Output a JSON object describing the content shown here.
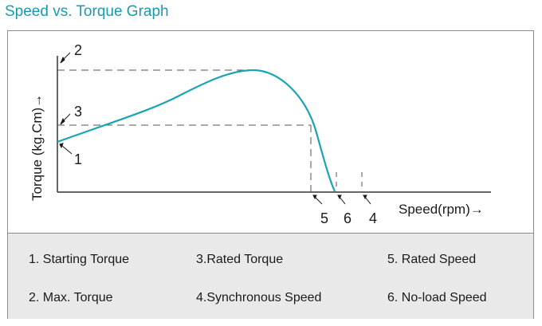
{
  "title": "Speed vs. Torque Graph",
  "colors": {
    "title": "#1a9ab0",
    "curve": "#1aa3b5",
    "axis": "#333333",
    "dash": "#555555",
    "legend_bg": "#e9e9e9"
  },
  "axes": {
    "y_label": "Torque (kg.Cm)→",
    "x_label": "Speed(rpm)→"
  },
  "markers": {
    "m1": "1",
    "m2": "2",
    "m3": "3",
    "m5": "5",
    "m6": "6",
    "m4": "4"
  },
  "legend": {
    "items": [
      "1. Starting Torque",
      "3.Rated Torque",
      "5. Rated Speed",
      "2. Max. Torque",
      "4.Synchronous Speed",
      "6. No-load Speed"
    ]
  }
}
